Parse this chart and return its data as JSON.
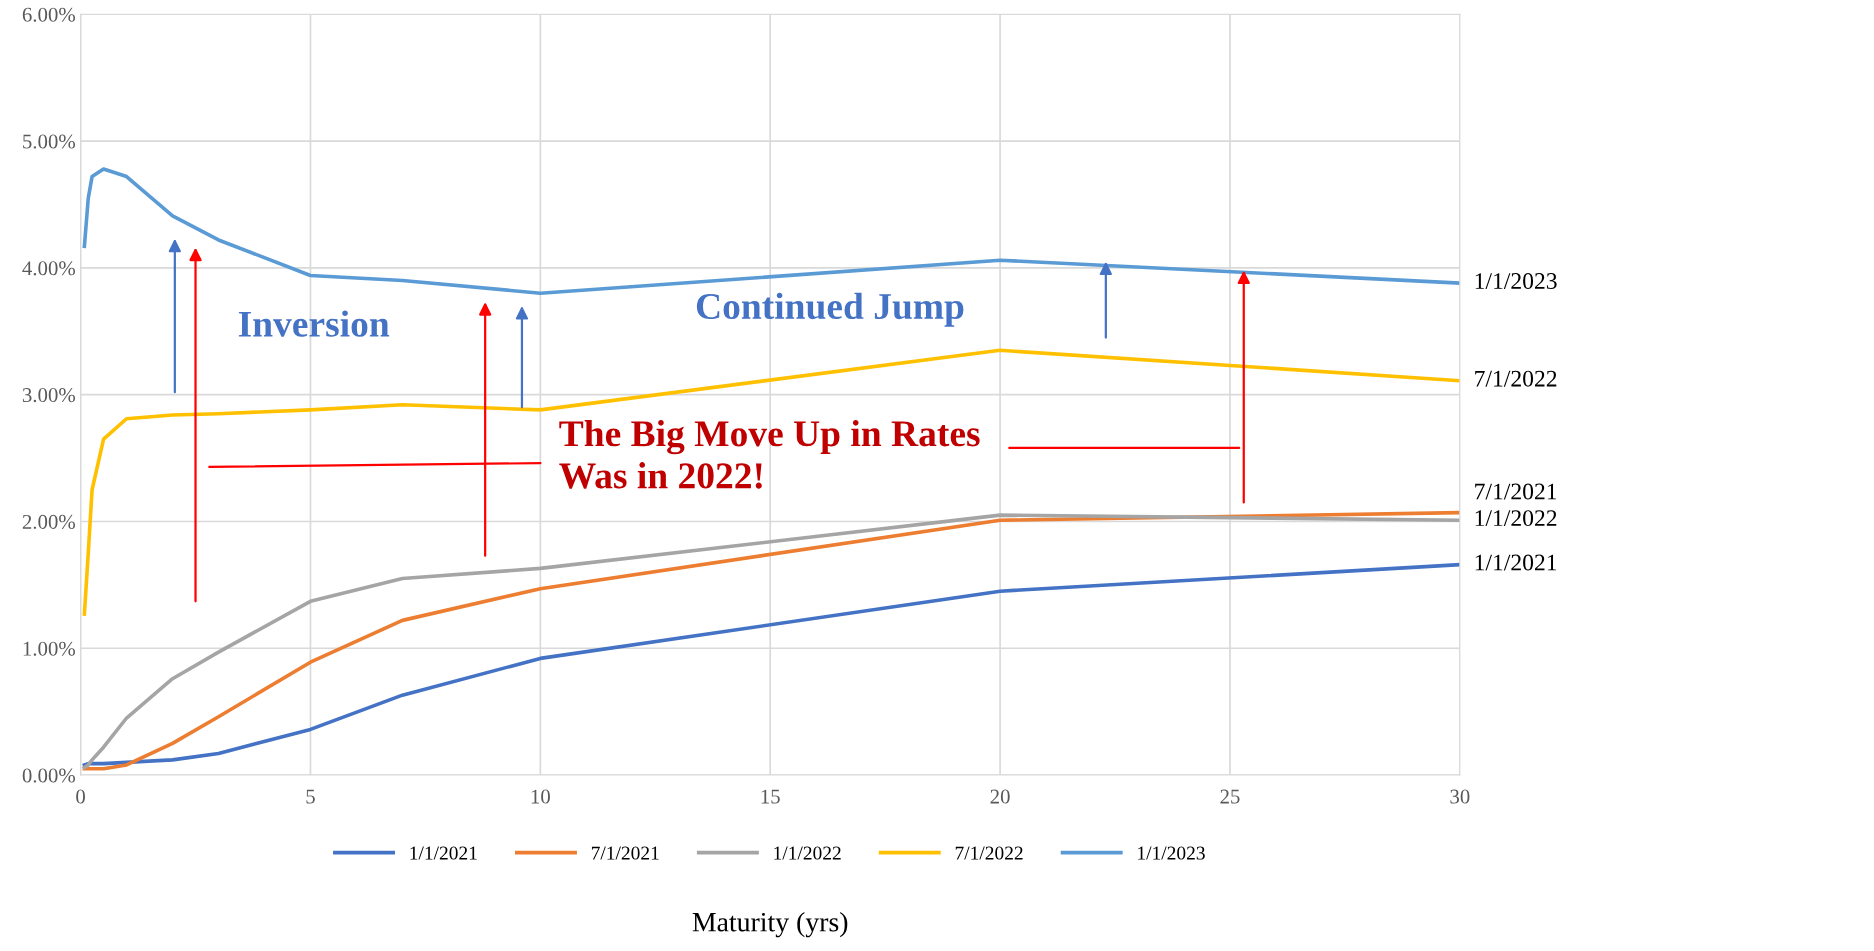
{
  "chart_data": {
    "type": "line",
    "xlabel": "Maturity (yrs)",
    "xlim": [
      0,
      30
    ],
    "xticks": [
      0,
      5,
      10,
      15,
      20,
      25,
      30
    ],
    "ylim": [
      0,
      0.06
    ],
    "yticks": [
      {
        "value": 0,
        "label": "0.00%"
      },
      {
        "value": 0.01,
        "label": "1.00%"
      },
      {
        "value": 0.02,
        "label": "2.00%"
      },
      {
        "value": 0.03,
        "label": "3.00%"
      },
      {
        "value": 0.04,
        "label": "4.00%"
      },
      {
        "value": 0.05,
        "label": "5.00%"
      },
      {
        "value": 0.06,
        "label": "6.00%"
      }
    ],
    "x": [
      0.083,
      0.167,
      0.25,
      0.5,
      1,
      2,
      3,
      5,
      7,
      10,
      20,
      30
    ],
    "series": [
      {
        "name": "1/1/2021",
        "color": "#4472c4",
        "values": [
          0.0008,
          0.0009,
          0.0009,
          0.0009,
          0.001,
          0.0012,
          0.0017,
          0.0036,
          0.0063,
          0.0092,
          0.0145,
          0.0166
        ]
      },
      {
        "name": "7/1/2021",
        "color": "#ed7d31",
        "values": [
          0.0005,
          0.0005,
          0.0005,
          0.0005,
          0.0008,
          0.0025,
          0.0046,
          0.0089,
          0.0122,
          0.0147,
          0.0201,
          0.0207
        ]
      },
      {
        "name": "1/1/2022",
        "color": "#a5a5a5",
        "values": [
          0.0006,
          0.0008,
          0.0012,
          0.0022,
          0.0045,
          0.0076,
          0.0097,
          0.0137,
          0.0155,
          0.0163,
          0.0205,
          0.0201
        ]
      },
      {
        "name": "7/1/2022",
        "color": "#ffc000",
        "values": [
          0.0127,
          0.0175,
          0.0225,
          0.0265,
          0.0281,
          0.0284,
          0.0285,
          0.0288,
          0.0292,
          0.0288,
          0.0335,
          0.0311
        ]
      },
      {
        "name": "1/1/2023",
        "color": "#5b9bd5",
        "values": [
          0.0417,
          0.0455,
          0.0472,
          0.0478,
          0.0472,
          0.0441,
          0.0422,
          0.0394,
          0.039,
          0.038,
          0.0406,
          0.0388
        ]
      }
    ],
    "annotations": [
      "Inversion",
      "Continued Jump",
      "The Big Move Up in Rates\nWas in 2022!"
    ],
    "grid": true,
    "legend": "bottom",
    "marker": "none",
    "line_style": "solid"
  }
}
